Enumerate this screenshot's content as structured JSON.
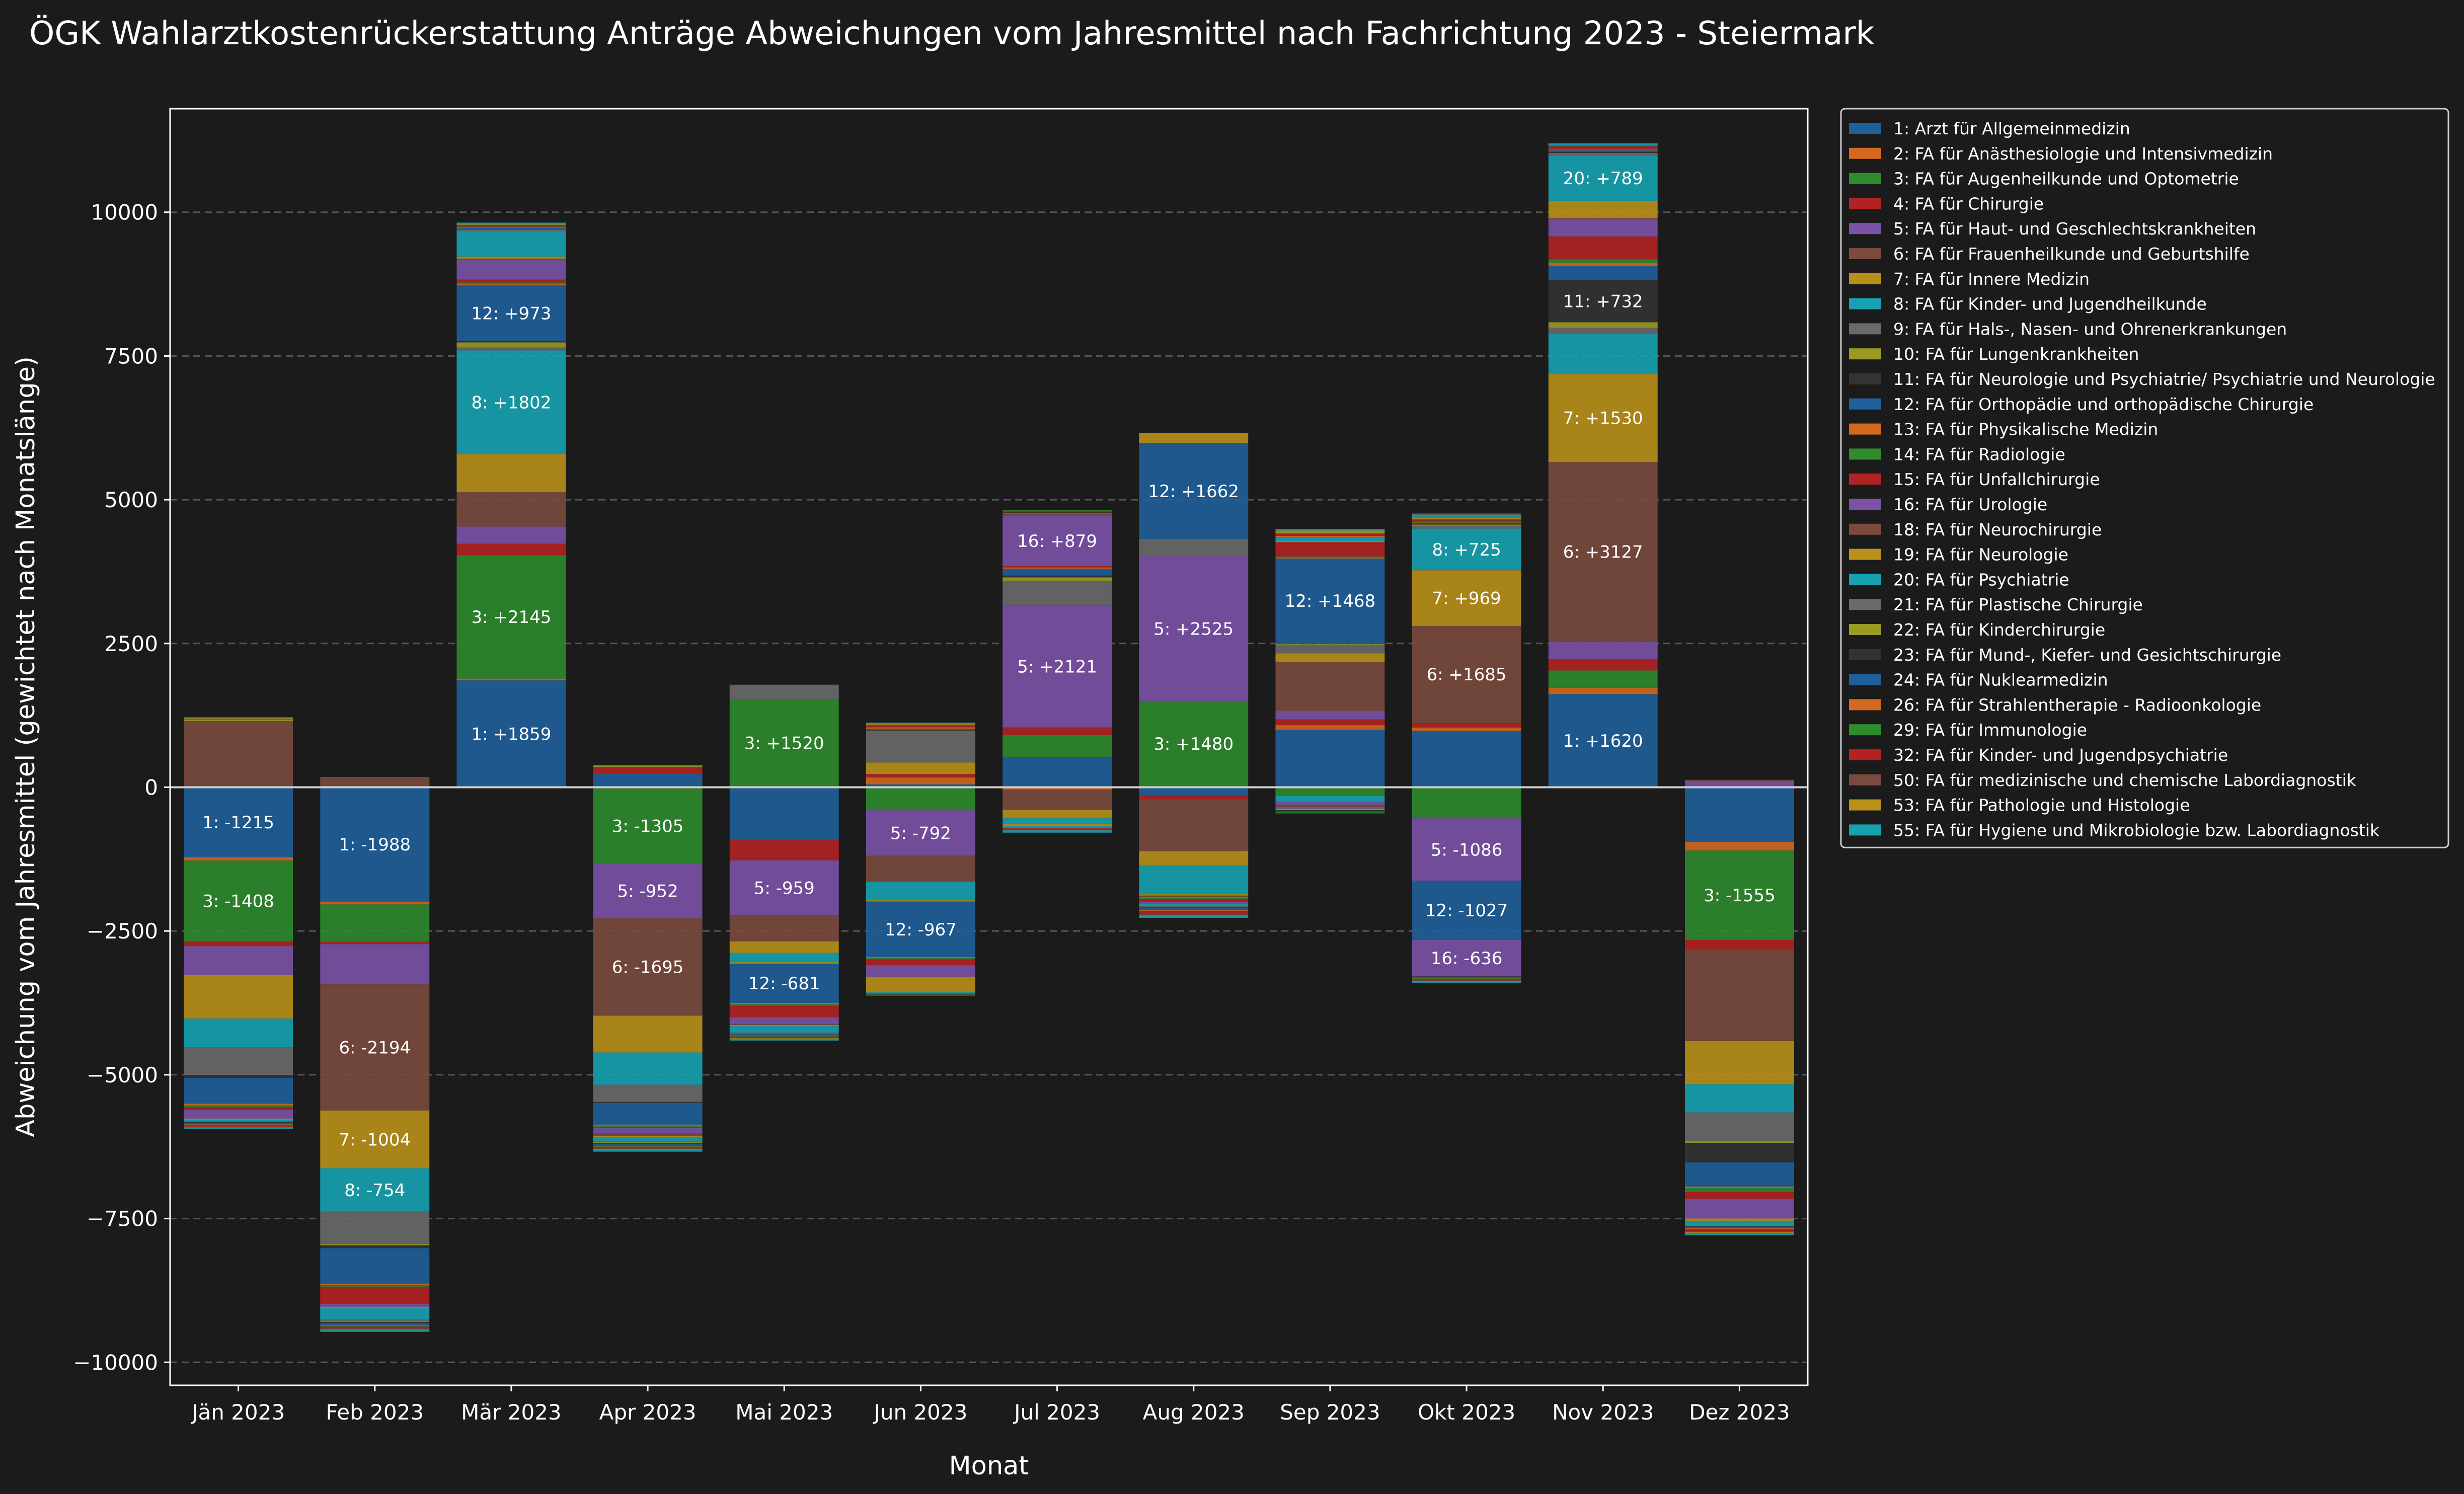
{
  "chart_data": {
    "type": "bar",
    "stacked": "diverging",
    "title": "ÖGK Wahlarztkostenrückerstattung Anträge Abweichungen vom Jahresmittel nach Fachrichtung 2023 - Steiermark",
    "xlabel": "Monat",
    "ylabel": "Abweichung vom Jahresmittel (gewichtet nach Monatslänge)",
    "ylim": [
      -10400,
      11800
    ],
    "yticks": [
      -10000,
      -7500,
      -5000,
      -2500,
      0,
      2500,
      5000,
      7500,
      10000
    ],
    "ytick_labels": [
      "−10000",
      "−7500",
      "−5000",
      "−2500",
      "0",
      "2500",
      "5000",
      "7500",
      "10000"
    ],
    "grid": "horizontal dashed",
    "legend": "outside upper-right",
    "categories": [
      "Jän 2023",
      "Feb 2023",
      "Mär 2023",
      "Apr 2023",
      "Mai 2023",
      "Jun 2023",
      "Jul 2023",
      "Aug 2023",
      "Sep 2023",
      "Okt 2023",
      "Nov 2023",
      "Dez 2023"
    ],
    "series": [
      {
        "name": "1: Arzt für Allgemeinmedizin",
        "color": "#1f5f9a",
        "values": [
          -1215,
          -1988,
          1859,
          250,
          -920,
          50,
          530,
          -150,
          1000,
          980,
          1620,
          -950
        ]
      },
      {
        "name": "2: FA für Anästhesiologie und Intensivmedizin",
        "color": "#d2691e",
        "values": [
          -60,
          -50,
          30,
          -20,
          10,
          120,
          -40,
          15,
          80,
          60,
          110,
          -150
        ]
      },
      {
        "name": "3: FA für Augenheilkunde und Optometrie",
        "color": "#2e8b2e",
        "values": [
          -1408,
          -650,
          2145,
          -1305,
          1520,
          -400,
          380,
          1480,
          -150,
          -540,
          300,
          -1555
        ]
      },
      {
        "name": "4: FA für Chirurgie",
        "color": "#b22222",
        "values": [
          -80,
          -40,
          200,
          100,
          -350,
          60,
          130,
          -60,
          100,
          80,
          200,
          -160
        ]
      },
      {
        "name": "5: FA für Haut- und Geschlechtskrankheiten",
        "color": "#7b52a6",
        "values": [
          -500,
          -700,
          300,
          -952,
          -959,
          -792,
          2121,
          2525,
          150,
          -1086,
          300,
          110
        ]
      },
      {
        "name": "6: FA für Frauenheilkunde und Geburtshilfe",
        "color": "#7a4a3e",
        "values": [
          1150,
          -2194,
          600,
          -1695,
          -450,
          -450,
          -350,
          -900,
          850,
          1685,
          3127,
          -1600
        ]
      },
      {
        "name": "7: FA für Innere Medizin",
        "color": "#b8901a",
        "values": [
          -760,
          -1004,
          660,
          -640,
          -200,
          200,
          -150,
          -250,
          150,
          969,
          1530,
          -750
        ]
      },
      {
        "name": "8: FA für Kinder- und Jugendheilkunde",
        "color": "#17a2b0",
        "values": [
          -500,
          -754,
          1802,
          -560,
          -160,
          -320,
          -100,
          -500,
          -100,
          725,
          700,
          -490
        ]
      },
      {
        "name": "9: FA für Hals-, Nasen- und Ohrenerkrankungen",
        "color": "#6a6a6a",
        "values": [
          -480,
          -560,
          50,
          -300,
          250,
          550,
          430,
          300,
          150,
          50,
          100,
          -500
        ]
      },
      {
        "name": "10: FA für Lungenkrankheiten",
        "color": "#9a9a25",
        "values": [
          30,
          -25,
          90,
          30,
          -30,
          -25,
          60,
          -25,
          20,
          20,
          100,
          -30
        ]
      },
      {
        "name": "11: FA für Neurologie und Psychiatrie/ Psychiatrie und Neurologie",
        "color": "#333333",
        "values": [
          -50,
          -50,
          20,
          -15,
          10,
          10,
          30,
          -15,
          10,
          20,
          732,
          -340
        ]
      },
      {
        "name": "12: FA für Orthopädie und orthopädische Chirurgie",
        "color": "#1f5f9a",
        "values": [
          -450,
          -620,
          973,
          -380,
          -681,
          -967,
          120,
          1662,
          1468,
          -1027,
          250,
          -420
        ]
      },
      {
        "name": "13: FA für Physikalische Medizin",
        "color": "#d2691e",
        "values": [
          -30,
          -25,
          20,
          -20,
          -25,
          -20,
          15,
          -20,
          20,
          15,
          50,
          -25
        ]
      },
      {
        "name": "14: FA für Radiologie",
        "color": "#2e8b2e",
        "values": [
          -30,
          -25,
          30,
          -20,
          -25,
          -20,
          15,
          -20,
          15,
          15,
          60,
          -70
        ]
      },
      {
        "name": "15: FA für Unfallchirurgie",
        "color": "#b22222",
        "values": [
          -50,
          -300,
          50,
          -15,
          -200,
          -100,
          15,
          -50,
          250,
          20,
          400,
          -120
        ]
      },
      {
        "name": "16: FA für Urologie",
        "color": "#7b52a6",
        "values": [
          -150,
          -50,
          340,
          -100,
          -120,
          -200,
          879,
          -20,
          -60,
          -636,
          300,
          -340
        ]
      },
      {
        "name": "18: FA für Neurochirurgie",
        "color": "#7a4a3e",
        "values": [
          10,
          180,
          20,
          -40,
          -15,
          30,
          30,
          -10,
          -30,
          20,
          20,
          20
        ]
      },
      {
        "name": "19: FA für Neurologie",
        "color": "#b8901a",
        "values": [
          -20,
          -25,
          40,
          -30,
          -20,
          -270,
          -30,
          180,
          20,
          30,
          300,
          -50
        ]
      },
      {
        "name": "20: FA für Psychiatrie",
        "color": "#17a2b0",
        "values": [
          -30,
          -200,
          440,
          -60,
          -110,
          -20,
          -40,
          -50,
          60,
          50,
          789,
          -60
        ]
      },
      {
        "name": "21: FA für Plastische Chirurgie",
        "color": "#6a6a6a",
        "values": [
          -10,
          -30,
          20,
          -20,
          -10,
          -10,
          10,
          -10,
          -40,
          10,
          30,
          -10
        ]
      },
      {
        "name": "22: FA für Kinderchirurgie",
        "color": "#9a9a25",
        "values": [
          20,
          -10,
          10,
          -10,
          -10,
          -10,
          10,
          -10,
          -20,
          10,
          10,
          -10
        ]
      },
      {
        "name": "23: FA für Mund-, Kiefer- und Gesichtschirurgie",
        "color": "#333333",
        "values": [
          -10,
          -20,
          10,
          -15,
          -10,
          -10,
          10,
          -10,
          -20,
          -10,
          20,
          -10
        ]
      },
      {
        "name": "24: FA für Nuklearmedizin",
        "color": "#1f5f9a",
        "values": [
          -30,
          -40,
          20,
          -40,
          -20,
          -15,
          15,
          -40,
          -15,
          -15,
          30,
          -30
        ]
      },
      {
        "name": "26: FA für Strahlentherapie - Radioonkologie",
        "color": "#d2691e",
        "values": [
          -10,
          -10,
          10,
          -10,
          -10,
          20,
          10,
          -10,
          30,
          -10,
          10,
          -10
        ]
      },
      {
        "name": "29: FA für Immunologie",
        "color": "#2e8b2e",
        "values": [
          -10,
          -10,
          10,
          -10,
          -10,
          10,
          10,
          -10,
          -20,
          -10,
          10,
          -10
        ]
      },
      {
        "name": "32: FA für Kinder- und Jugendpsychiatrie",
        "color": "#b22222",
        "values": [
          -20,
          -30,
          20,
          -20,
          -20,
          20,
          -20,
          -50,
          30,
          -20,
          40,
          -30
        ]
      },
      {
        "name": "50: FA für medizinische und chemische Labordiagnostik",
        "color": "#7a4a3e",
        "values": [
          10,
          -20,
          10,
          -20,
          -10,
          15,
          -10,
          -20,
          10,
          -15,
          20,
          -20
        ]
      },
      {
        "name": "53: FA für Pathologie und Histologie",
        "color": "#b8901a",
        "values": [
          -10,
          -10,
          10,
          -10,
          -10,
          20,
          -10,
          -10,
          50,
          -10,
          10,
          -10
        ]
      },
      {
        "name": "55: FA für Hygiene und Mikrobiologie bzw. Labordiagnostik",
        "color": "#17a2b0",
        "values": [
          -30,
          -30,
          30,
          -30,
          -30,
          20,
          -40,
          -30,
          30,
          -20,
          30,
          -40
        ]
      }
    ],
    "segment_labels": [
      {
        "month": 0,
        "series": 0,
        "text": "1: -1215"
      },
      {
        "month": 0,
        "series": 2,
        "text": "3: -1408"
      },
      {
        "month": 1,
        "series": 0,
        "text": "1: -1988"
      },
      {
        "month": 1,
        "series": 5,
        "text": "6: -2194"
      },
      {
        "month": 1,
        "series": 6,
        "text": "7: -1004"
      },
      {
        "month": 1,
        "series": 7,
        "text": "8: -754"
      },
      {
        "month": 2,
        "series": 0,
        "text": "1: +1859"
      },
      {
        "month": 2,
        "series": 2,
        "text": "3: +2145"
      },
      {
        "month": 2,
        "series": 7,
        "text": "8: +1802"
      },
      {
        "month": 2,
        "series": 11,
        "text": "12: +973"
      },
      {
        "month": 3,
        "series": 2,
        "text": "3: -1305"
      },
      {
        "month": 3,
        "series": 4,
        "text": "5: -952"
      },
      {
        "month": 3,
        "series": 5,
        "text": "6: -1695"
      },
      {
        "month": 4,
        "series": 2,
        "text": "3: +1520"
      },
      {
        "month": 4,
        "series": 4,
        "text": "5: -959"
      },
      {
        "month": 4,
        "series": 11,
        "text": "12: -681"
      },
      {
        "month": 5,
        "series": 4,
        "text": "5: -792"
      },
      {
        "month": 5,
        "series": 11,
        "text": "12: -967"
      },
      {
        "month": 6,
        "series": 4,
        "text": "5: +2121"
      },
      {
        "month": 6,
        "series": 15,
        "text": "16: +879"
      },
      {
        "month": 7,
        "series": 2,
        "text": "3: +1480"
      },
      {
        "month": 7,
        "series": 4,
        "text": "5: +2525"
      },
      {
        "month": 7,
        "series": 11,
        "text": "12: +1662"
      },
      {
        "month": 8,
        "series": 11,
        "text": "12: +1468"
      },
      {
        "month": 9,
        "series": 4,
        "text": "5: -1086"
      },
      {
        "month": 9,
        "series": 5,
        "text": "6: +1685"
      },
      {
        "month": 9,
        "series": 6,
        "text": "7: +969"
      },
      {
        "month": 9,
        "series": 7,
        "text": "8: +725"
      },
      {
        "month": 9,
        "series": 11,
        "text": "12: -1027"
      },
      {
        "month": 9,
        "series": 15,
        "text": "16: -636"
      },
      {
        "month": 10,
        "series": 0,
        "text": "1: +1620"
      },
      {
        "month": 10,
        "series": 5,
        "text": "6: +3127"
      },
      {
        "month": 10,
        "series": 6,
        "text": "7: +1530"
      },
      {
        "month": 10,
        "series": 10,
        "text": "11: +732"
      },
      {
        "month": 10,
        "series": 18,
        "text": "20: +789"
      },
      {
        "month": 11,
        "series": 2,
        "text": "3: -1555"
      }
    ]
  }
}
